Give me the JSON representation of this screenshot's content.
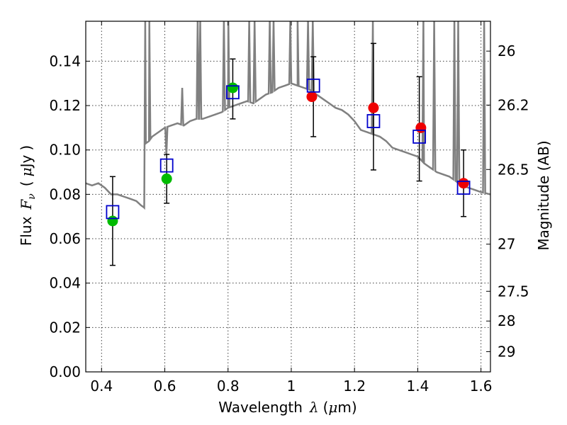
{
  "chart_data": {
    "type": "scatter",
    "title": "",
    "xlabel": "Wavelength",
    "xlabel_symbol": "λ",
    "xlabel_unit_open": "(",
    "xlabel_unit_mu": "μ",
    "xlabel_unit_rest": "m)",
    "ylabel": "Flux",
    "ylabel_symbol": "F",
    "ylabel_sub": "ν",
    "ylabel_unit_open": "(",
    "ylabel_unit_mu": "μ",
    "ylabel_unit_rest": "Jy",
    "ylabel_unit_close": ")",
    "y2label": "Magnitude (AB)",
    "xlim": [
      0.35,
      1.63
    ],
    "ylim": [
      0.0,
      0.158
    ],
    "grid": true,
    "x_ticks": [
      {
        "value": 0.4,
        "label": "0.4"
      },
      {
        "value": 0.6,
        "label": "0.6"
      },
      {
        "value": 0.8,
        "label": "0.8"
      },
      {
        "value": 1.0,
        "label": "1"
      },
      {
        "value": 1.2,
        "label": "1.2"
      },
      {
        "value": 1.4,
        "label": "1.4"
      },
      {
        "value": 1.6,
        "label": "1.6"
      }
    ],
    "y_ticks": [
      {
        "value": 0.0,
        "label": "0.00"
      },
      {
        "value": 0.02,
        "label": "0.02"
      },
      {
        "value": 0.04,
        "label": "0.04"
      },
      {
        "value": 0.06,
        "label": "0.06"
      },
      {
        "value": 0.08,
        "label": "0.08"
      },
      {
        "value": 0.1,
        "label": "0.10"
      },
      {
        "value": 0.12,
        "label": "0.12"
      },
      {
        "value": 0.14,
        "label": "0.14"
      }
    ],
    "y2_ticks": [
      {
        "value": 26,
        "label": "26"
      },
      {
        "value": 26.2,
        "label": "26.2"
      },
      {
        "value": 26.5,
        "label": "26.5"
      },
      {
        "value": 27,
        "label": "27"
      },
      {
        "value": 27.5,
        "label": "27.5"
      },
      {
        "value": 28,
        "label": "28"
      },
      {
        "value": 29,
        "label": "29"
      }
    ],
    "colors": {
      "model": "#808080",
      "green": "#00bb00",
      "red": "#ee0000",
      "box": "#0000cc",
      "errorbar": "#000000"
    },
    "model_spectrum": {
      "x": [
        0.35,
        0.37,
        0.39,
        0.41,
        0.43,
        0.45,
        0.47,
        0.49,
        0.51,
        0.525,
        0.535,
        0.54,
        0.55,
        0.56,
        0.58,
        0.6,
        0.62,
        0.64,
        0.66,
        0.68,
        0.7,
        0.72,
        0.74,
        0.76,
        0.78,
        0.8,
        0.82,
        0.84,
        0.86,
        0.88,
        0.9,
        0.92,
        0.94,
        0.96,
        0.98,
        1.0,
        1.02,
        1.04,
        1.06,
        1.08,
        1.1,
        1.12,
        1.14,
        1.16,
        1.18,
        1.2,
        1.22,
        1.24,
        1.26,
        1.28,
        1.3,
        1.32,
        1.34,
        1.36,
        1.38,
        1.4,
        1.42,
        1.44,
        1.46,
        1.48,
        1.5,
        1.52,
        1.54,
        1.56,
        1.58,
        1.6,
        1.63
      ],
      "y": [
        0.085,
        0.084,
        0.085,
        0.083,
        0.08,
        0.08,
        0.079,
        0.078,
        0.077,
        0.075,
        0.074,
        0.103,
        0.104,
        0.106,
        0.108,
        0.11,
        0.111,
        0.112,
        0.111,
        0.113,
        0.114,
        0.114,
        0.115,
        0.116,
        0.117,
        0.119,
        0.12,
        0.121,
        0.122,
        0.121,
        0.123,
        0.125,
        0.126,
        0.128,
        0.129,
        0.13,
        0.129,
        0.128,
        0.127,
        0.125,
        0.123,
        0.121,
        0.119,
        0.118,
        0.116,
        0.113,
        0.109,
        0.108,
        0.107,
        0.106,
        0.104,
        0.101,
        0.1,
        0.099,
        0.098,
        0.097,
        0.094,
        0.092,
        0.09,
        0.089,
        0.088,
        0.086,
        0.084,
        0.083,
        0.082,
        0.081,
        0.08
      ]
    },
    "emission_lines": [
      {
        "x": 0.538,
        "peak": 0.158
      },
      {
        "x": 0.551,
        "peak": 0.158
      },
      {
        "x": 0.605,
        "peak": 0.098
      },
      {
        "x": 0.655,
        "peak": 0.128
      },
      {
        "x": 0.704,
        "peak": 0.158
      },
      {
        "x": 0.712,
        "peak": 0.158
      },
      {
        "x": 0.787,
        "peak": 0.158
      },
      {
        "x": 0.801,
        "peak": 0.158
      },
      {
        "x": 0.867,
        "peak": 0.158
      },
      {
        "x": 0.884,
        "peak": 0.158
      },
      {
        "x": 0.932,
        "peak": 0.158
      },
      {
        "x": 0.944,
        "peak": 0.158
      },
      {
        "x": 0.997,
        "peak": 0.158
      },
      {
        "x": 1.02,
        "peak": 0.158
      },
      {
        "x": 1.053,
        "peak": 0.158
      },
      {
        "x": 1.068,
        "peak": 0.158
      },
      {
        "x": 1.258,
        "peak": 0.158
      },
      {
        "x": 1.418,
        "peak": 0.158
      },
      {
        "x": 1.452,
        "peak": 0.158
      },
      {
        "x": 1.516,
        "peak": 0.158
      },
      {
        "x": 1.528,
        "peak": 0.158
      },
      {
        "x": 1.61,
        "peak": 0.158
      }
    ],
    "model_points": [
      {
        "x": 0.435,
        "y": 0.072,
        "err_low": 0.048,
        "err_high": 0.088
      },
      {
        "x": 0.606,
        "y": 0.093,
        "err_low": 0.076,
        "err_high": 0.098
      },
      {
        "x": 0.815,
        "y": 0.126,
        "err_low": 0.114,
        "err_high": 0.141
      },
      {
        "x": 1.07,
        "y": 0.129,
        "err_low": 0.106,
        "err_high": 0.142
      },
      {
        "x": 1.26,
        "y": 0.113,
        "err_low": 0.091,
        "err_high": 0.148
      },
      {
        "x": 1.405,
        "y": 0.106,
        "err_low": 0.086,
        "err_high": 0.133
      },
      {
        "x": 1.545,
        "y": 0.083,
        "err_low": 0.07,
        "err_high": 0.1
      }
    ],
    "observed_green": [
      {
        "x": 0.435,
        "y": 0.068
      },
      {
        "x": 0.606,
        "y": 0.087
      },
      {
        "x": 0.815,
        "y": 0.128
      }
    ],
    "observed_red": [
      {
        "x": 1.065,
        "y": 0.124
      },
      {
        "x": 1.26,
        "y": 0.119
      },
      {
        "x": 1.41,
        "y": 0.11
      },
      {
        "x": 1.545,
        "y": 0.085
      }
    ]
  }
}
